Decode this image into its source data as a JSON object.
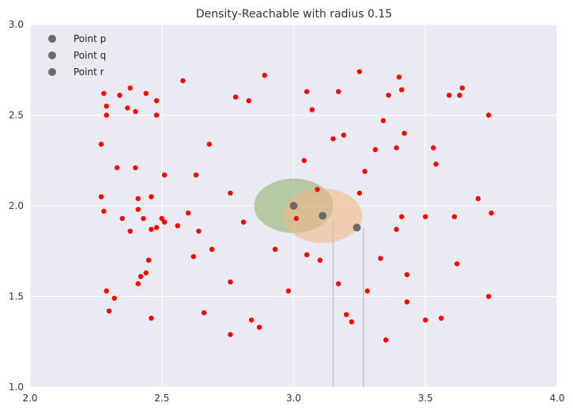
{
  "chart_data": {
    "type": "scatter",
    "title": "Density-Reachable with radius 0.15",
    "xlabel": "",
    "ylabel": "",
    "xlim": [
      2.0,
      4.0
    ],
    "ylim": [
      1.0,
      3.0
    ],
    "x_ticks": [
      "2.0",
      "2.5",
      "3.0",
      "3.5",
      "4.0"
    ],
    "y_ticks": [
      "1.0",
      "1.5",
      "2.0",
      "2.5",
      "3.0"
    ],
    "grid": true,
    "legend_position": "top-left",
    "colors": {
      "background": "#eaeaf2",
      "grid": "#ffffff",
      "points": "#ff0000",
      "highlight": "#6b6b6b",
      "circle_p": "#8fb36f",
      "circle_q": "#f0b989",
      "drop_lines": "#c9c2c6"
    },
    "highlight_points": [
      {
        "name": "Point p",
        "x": 3.0,
        "y": 2.0
      },
      {
        "name": "Point q",
        "x": 3.11,
        "y": 1.945
      },
      {
        "name": "Point r",
        "x": 3.24,
        "y": 1.88
      }
    ],
    "circles": [
      {
        "cx": 3.0,
        "cy": 2.0,
        "r": 0.15,
        "color": "#8fb36f"
      },
      {
        "cx": 3.11,
        "cy": 1.945,
        "r": 0.15,
        "color": "#f0b989"
      }
    ],
    "drop_lines": [
      {
        "x": 3.15,
        "y_top": 1.92
      },
      {
        "x": 3.265,
        "y_top": 1.88
      }
    ],
    "series": [
      {
        "points": [
          [
            2.28,
            2.62
          ],
          [
            2.29,
            2.55
          ],
          [
            2.29,
            2.5
          ],
          [
            2.27,
            2.34
          ],
          [
            2.27,
            2.05
          ],
          [
            2.28,
            1.97
          ],
          [
            2.29,
            1.53
          ],
          [
            2.3,
            1.42
          ],
          [
            2.32,
            1.49
          ],
          [
            2.33,
            2.21
          ],
          [
            2.34,
            2.61
          ],
          [
            2.35,
            1.93
          ],
          [
            2.37,
            2.54
          ],
          [
            2.38,
            1.86
          ],
          [
            2.38,
            2.65
          ],
          [
            2.4,
            2.52
          ],
          [
            2.4,
            2.21
          ],
          [
            2.41,
            1.98
          ],
          [
            2.41,
            2.04
          ],
          [
            2.41,
            1.57
          ],
          [
            2.42,
            1.61
          ],
          [
            2.43,
            1.93
          ],
          [
            2.44,
            2.62
          ],
          [
            2.44,
            1.63
          ],
          [
            2.45,
            1.7
          ],
          [
            2.46,
            2.05
          ],
          [
            2.46,
            1.87
          ],
          [
            2.46,
            1.38
          ],
          [
            2.48,
            2.58
          ],
          [
            2.48,
            2.5
          ],
          [
            2.48,
            1.88
          ],
          [
            2.5,
            1.93
          ],
          [
            2.51,
            1.91
          ],
          [
            2.51,
            2.17
          ],
          [
            2.56,
            1.89
          ],
          [
            2.58,
            2.69
          ],
          [
            2.6,
            1.96
          ],
          [
            2.62,
            1.72
          ],
          [
            2.63,
            2.17
          ],
          [
            2.64,
            1.86
          ],
          [
            2.66,
            1.41
          ],
          [
            2.68,
            2.34
          ],
          [
            2.69,
            1.76
          ],
          [
            2.76,
            2.07
          ],
          [
            2.76,
            1.58
          ],
          [
            2.76,
            1.29
          ],
          [
            2.78,
            2.6
          ],
          [
            2.81,
            1.91
          ],
          [
            2.83,
            2.58
          ],
          [
            2.84,
            1.37
          ],
          [
            2.87,
            1.33
          ],
          [
            2.89,
            2.72
          ],
          [
            2.93,
            1.76
          ],
          [
            2.98,
            1.53
          ],
          [
            3.01,
            1.93
          ],
          [
            3.04,
            2.25
          ],
          [
            3.05,
            2.63
          ],
          [
            3.05,
            1.73
          ],
          [
            3.07,
            2.53
          ],
          [
            3.09,
            2.09
          ],
          [
            3.1,
            1.7
          ],
          [
            3.15,
            2.37
          ],
          [
            3.17,
            2.63
          ],
          [
            3.17,
            1.57
          ],
          [
            3.19,
            2.39
          ],
          [
            3.2,
            1.4
          ],
          [
            3.22,
            1.36
          ],
          [
            3.25,
            2.74
          ],
          [
            3.25,
            2.07
          ],
          [
            3.27,
            2.19
          ],
          [
            3.28,
            1.53
          ],
          [
            3.31,
            2.31
          ],
          [
            3.33,
            1.71
          ],
          [
            3.34,
            2.47
          ],
          [
            3.35,
            1.26
          ],
          [
            3.36,
            2.61
          ],
          [
            3.39,
            2.32
          ],
          [
            3.39,
            1.87
          ],
          [
            3.4,
            2.71
          ],
          [
            3.41,
            2.64
          ],
          [
            3.41,
            1.94
          ],
          [
            3.42,
            2.4
          ],
          [
            3.43,
            1.62
          ],
          [
            3.43,
            1.47
          ],
          [
            3.5,
            1.37
          ],
          [
            3.5,
            1.94
          ],
          [
            3.53,
            2.32
          ],
          [
            3.54,
            2.23
          ],
          [
            3.56,
            1.38
          ],
          [
            3.59,
            2.61
          ],
          [
            3.61,
            1.94
          ],
          [
            3.62,
            1.68
          ],
          [
            3.63,
            2.61
          ],
          [
            3.64,
            2.65
          ],
          [
            3.7,
            2.04
          ],
          [
            3.74,
            2.5
          ],
          [
            3.74,
            1.5
          ],
          [
            3.75,
            1.96
          ]
        ]
      }
    ]
  }
}
